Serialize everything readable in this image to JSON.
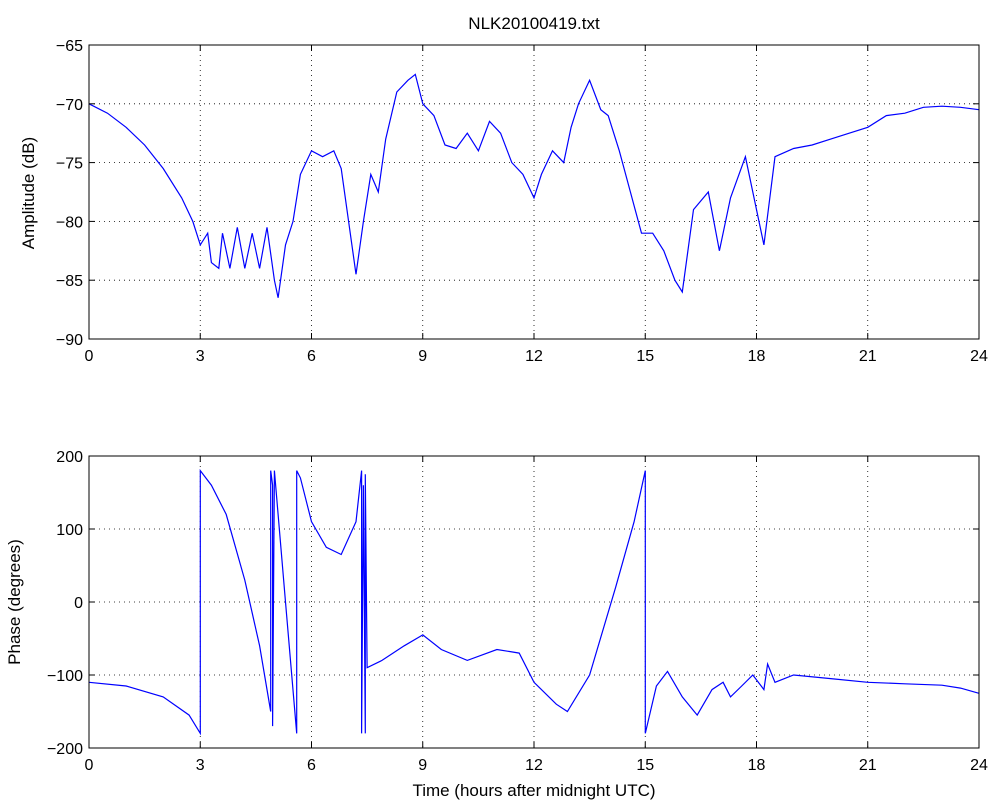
{
  "colors": {
    "line": "#0000ff",
    "axes": "#000000",
    "grid": "#000000",
    "background": "#ffffff"
  },
  "chart_data": [
    {
      "type": "line",
      "title": "NLK20100419.txt",
      "xlabel": "",
      "ylabel": "Amplitude (dB)",
      "xlim": [
        0,
        24
      ],
      "ylim": [
        -90,
        -65
      ],
      "xticks": [
        "0",
        "3",
        "6",
        "9",
        "12",
        "15",
        "18",
        "21",
        "24"
      ],
      "yticks": [
        "-90",
        "-85",
        "-80",
        "-75",
        "-70",
        "-65"
      ],
      "grid": true,
      "series": [
        {
          "x": [
            0,
            0.5,
            1,
            1.5,
            2,
            2.5,
            2.8,
            3.0,
            3.2,
            3.3,
            3.5,
            3.6,
            3.8,
            4.0,
            4.2,
            4.4,
            4.6,
            4.8,
            5.0,
            5.1,
            5.3,
            5.5,
            5.7,
            6.0,
            6.3,
            6.6,
            6.8,
            7.0,
            7.2,
            7.4,
            7.6,
            7.8,
            8.0,
            8.3,
            8.6,
            8.8,
            9.0,
            9.3,
            9.6,
            9.9,
            10.2,
            10.5,
            10.8,
            11.1,
            11.4,
            11.7,
            12.0,
            12.2,
            12.5,
            12.8,
            13.0,
            13.2,
            13.5,
            13.8,
            14.0,
            14.3,
            14.6,
            14.9,
            15.2,
            15.5,
            15.8,
            16.0,
            16.3,
            16.7,
            17.0,
            17.3,
            17.7,
            18.0,
            18.2,
            18.5,
            19.0,
            19.5,
            20.0,
            20.5,
            21.0,
            21.5,
            22.0,
            22.5,
            23.0,
            23.5,
            24.0
          ],
          "y": [
            -70,
            -70.8,
            -72,
            -73.5,
            -75.5,
            -78,
            -80,
            -82,
            -81,
            -83.5,
            -84,
            -81,
            -84,
            -80.5,
            -84,
            -81,
            -84,
            -80.5,
            -85,
            -86.5,
            -82,
            -80,
            -76,
            -74,
            -74.5,
            -74,
            -75.5,
            -80,
            -84.5,
            -80,
            -76,
            -77.5,
            -73,
            -69,
            -68,
            -67.5,
            -70,
            -71,
            -73.5,
            -73.8,
            -72.5,
            -74,
            -71.5,
            -72.5,
            -75,
            -76,
            -78,
            -76,
            -74,
            -75,
            -72,
            -70,
            -68,
            -70.5,
            -71,
            -74,
            -77.5,
            -81,
            -81,
            -82.5,
            -85,
            -86,
            -79,
            -77.5,
            -82.5,
            -78,
            -74.5,
            -79,
            -82,
            -74.5,
            -73.8,
            -73.5,
            -73,
            -72.5,
            -72,
            -71,
            -70.8,
            -70.3,
            -70.2,
            -70.3,
            -70.5
          ]
        }
      ]
    },
    {
      "type": "line",
      "title": "",
      "xlabel": "Time (hours after midnight UTC)",
      "ylabel": "Phase (degrees)",
      "xlim": [
        0,
        24
      ],
      "ylim": [
        -200,
        200
      ],
      "xticks": [
        "0",
        "3",
        "6",
        "9",
        "12",
        "15",
        "18",
        "21",
        "24"
      ],
      "yticks": [
        "-200",
        "-100",
        "0",
        "100",
        "200"
      ],
      "grid": true,
      "series": [
        {
          "x": [
            0,
            1,
            2,
            2.7,
            3.0,
            3.0,
            3.3,
            3.7,
            4.2,
            4.6,
            4.9,
            4.9,
            4.95,
            4.95,
            5.0,
            5.3,
            5.6,
            5.6,
            5.7,
            6.0,
            6.4,
            6.8,
            7.2,
            7.35,
            7.35,
            7.4,
            7.45,
            7.45,
            7.5,
            7.9,
            8.5,
            9.0,
            9.5,
            10.2,
            11.0,
            11.6,
            12.0,
            12.6,
            12.9,
            13.5,
            14.2,
            14.7,
            15.0,
            15.0,
            15.3,
            15.6,
            16.0,
            16.4,
            16.8,
            17.1,
            17.3,
            17.6,
            17.9,
            18.2,
            18.3,
            18.5,
            19.0,
            20.0,
            21.0,
            22.0,
            23.0,
            23.5,
            24.0
          ],
          "y": [
            -110,
            -115,
            -130,
            -155,
            -180,
            180,
            160,
            120,
            30,
            -60,
            -150,
            180,
            160,
            -170,
            180,
            0,
            -180,
            180,
            170,
            110,
            75,
            65,
            110,
            180,
            -180,
            160,
            -180,
            175,
            -90,
            -80,
            -60,
            -45,
            -65,
            -80,
            -65,
            -70,
            -110,
            -140,
            -150,
            -100,
            20,
            110,
            180,
            -180,
            -115,
            -95,
            -130,
            -155,
            -120,
            -110,
            -130,
            -115,
            -100,
            -120,
            -85,
            -110,
            -100,
            -105,
            -110,
            -112,
            -114,
            -118,
            -125
          ]
        }
      ]
    }
  ]
}
